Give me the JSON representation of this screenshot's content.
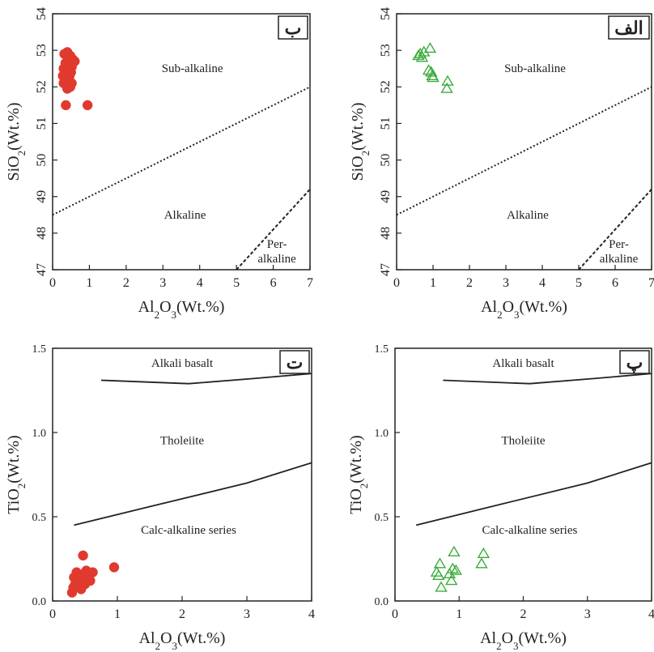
{
  "chart_data": [
    {
      "id": "top-left",
      "type": "scatter",
      "panel_label": "ب",
      "xlabel": {
        "base": "Al",
        "sub1": "2",
        "mid": "O",
        "sub2": "3",
        "tail": "(Wt.%)"
      },
      "ylabel": {
        "base": "SiO",
        "sub1": "2",
        "tail": "(Wt.%)"
      },
      "xlim": [
        0,
        7
      ],
      "ylim": [
        47,
        54
      ],
      "xticks": [
        0,
        1,
        2,
        3,
        4,
        5,
        6,
        7
      ],
      "yticks": [
        47,
        48,
        49,
        50,
        51,
        52,
        53,
        54
      ],
      "marker": "filled-circle",
      "marker_color": "#e03a2f",
      "points": [
        [
          0.32,
          52.9
        ],
        [
          0.4,
          52.95
        ],
        [
          0.48,
          52.85
        ],
        [
          0.55,
          52.75
        ],
        [
          0.6,
          52.7
        ],
        [
          0.35,
          52.65
        ],
        [
          0.45,
          52.6
        ],
        [
          0.52,
          52.55
        ],
        [
          0.3,
          52.5
        ],
        [
          0.42,
          52.45
        ],
        [
          0.5,
          52.4
        ],
        [
          0.38,
          52.35
        ],
        [
          0.28,
          52.3
        ],
        [
          0.46,
          52.3
        ],
        [
          0.34,
          52.2
        ],
        [
          0.44,
          52.15
        ],
        [
          0.3,
          52.1
        ],
        [
          0.52,
          52.1
        ],
        [
          0.38,
          52.05
        ],
        [
          0.48,
          52.0
        ],
        [
          0.4,
          51.95
        ],
        [
          0.36,
          51.5
        ],
        [
          0.95,
          51.5
        ]
      ],
      "boundaries": [
        {
          "style": "dotted",
          "points": [
            [
              0,
              48.5
            ],
            [
              7,
              52.0
            ]
          ]
        },
        {
          "style": "dashed",
          "points": [
            [
              5,
              47.0
            ],
            [
              7,
              49.2
            ]
          ]
        }
      ],
      "regions": [
        {
          "lines": [
            "Sub-alkaline"
          ],
          "at": [
            3.8,
            52.4
          ]
        },
        {
          "lines": [
            "Alkaline"
          ],
          "at": [
            3.6,
            48.4
          ]
        },
        {
          "lines": [
            "Per-",
            "alkaline"
          ],
          "at": [
            6.1,
            47.6
          ]
        }
      ]
    },
    {
      "id": "top-right",
      "type": "scatter",
      "panel_label": "الف",
      "xlabel": {
        "base": "Al",
        "sub1": "2",
        "mid": "O",
        "sub2": "3",
        "tail": "(Wt.%)"
      },
      "ylabel": {
        "base": "SiO",
        "sub1": "2",
        "tail": "(Wt.%)"
      },
      "xlim": [
        0,
        7
      ],
      "ylim": [
        47,
        54
      ],
      "xticks": [
        0,
        1,
        2,
        3,
        4,
        5,
        6,
        7
      ],
      "yticks": [
        47,
        48,
        49,
        50,
        51,
        52,
        53,
        54
      ],
      "marker": "open-triangle",
      "marker_color": "#3cac3c",
      "points": [
        [
          0.6,
          52.85
        ],
        [
          0.65,
          52.9
        ],
        [
          0.7,
          52.8
        ],
        [
          0.75,
          52.95
        ],
        [
          0.92,
          53.05
        ],
        [
          0.88,
          52.45
        ],
        [
          0.95,
          52.4
        ],
        [
          0.98,
          52.3
        ],
        [
          1.0,
          52.25
        ],
        [
          1.4,
          52.15
        ],
        [
          1.38,
          51.95
        ]
      ],
      "boundaries": [
        {
          "style": "dotted",
          "points": [
            [
              0,
              48.5
            ],
            [
              7,
              52.0
            ]
          ]
        },
        {
          "style": "dashed",
          "points": [
            [
              5,
              47.0
            ],
            [
              7,
              49.2
            ]
          ]
        }
      ],
      "regions": [
        {
          "lines": [
            "Sub-alkaline"
          ],
          "at": [
            3.8,
            52.4
          ]
        },
        {
          "lines": [
            "Alkaline"
          ],
          "at": [
            3.6,
            48.4
          ]
        },
        {
          "lines": [
            "Per-",
            "alkaline"
          ],
          "at": [
            6.1,
            47.6
          ]
        }
      ]
    },
    {
      "id": "bottom-left",
      "type": "scatter",
      "panel_label": "ت",
      "xlabel": {
        "base": "Al",
        "sub1": "2",
        "mid": "O",
        "sub2": "3",
        "tail": "(Wt.%)"
      },
      "ylabel": {
        "base": "TiO",
        "sub1": "2",
        "tail": "(Wt.%)"
      },
      "xlim": [
        0,
        4
      ],
      "ylim": [
        0,
        1.5
      ],
      "xticks": [
        0,
        1,
        2,
        3,
        4
      ],
      "yticks": [
        0.0,
        0.5,
        1.0,
        1.5
      ],
      "ytick_labels": [
        "0.0",
        "0.5",
        "1.0",
        "1.5"
      ],
      "marker": "filled-circle",
      "marker_color": "#e03a2f",
      "points": [
        [
          0.3,
          0.05
        ],
        [
          0.32,
          0.08
        ],
        [
          0.35,
          0.1
        ],
        [
          0.38,
          0.12
        ],
        [
          0.4,
          0.09
        ],
        [
          0.42,
          0.14
        ],
        [
          0.45,
          0.11
        ],
        [
          0.48,
          0.16
        ],
        [
          0.5,
          0.13
        ],
        [
          0.52,
          0.18
        ],
        [
          0.55,
          0.15
        ],
        [
          0.58,
          0.12
        ],
        [
          0.62,
          0.17
        ],
        [
          0.33,
          0.14
        ],
        [
          0.37,
          0.17
        ],
        [
          0.44,
          0.07
        ],
        [
          0.5,
          0.1
        ],
        [
          0.47,
          0.27
        ],
        [
          0.95,
          0.2
        ]
      ],
      "boundaries": [
        {
          "style": "solid",
          "points": [
            [
              0.75,
              1.31
            ],
            [
              2.1,
              1.29
            ],
            [
              3.1,
              1.32
            ],
            [
              4.0,
              1.35
            ]
          ]
        },
        {
          "style": "solid",
          "points": [
            [
              0.33,
              0.45
            ],
            [
              1.5,
              0.56
            ],
            [
              3.0,
              0.7
            ],
            [
              4.0,
              0.82
            ]
          ]
        }
      ],
      "regions": [
        {
          "lines": [
            "Alkali basalt"
          ],
          "at": [
            2.0,
            1.39
          ]
        },
        {
          "lines": [
            "Tholeiite"
          ],
          "at": [
            2.0,
            0.93
          ]
        },
        {
          "lines": [
            "Calc-alkaline series"
          ],
          "at": [
            2.1,
            0.4
          ]
        }
      ]
    },
    {
      "id": "bottom-right",
      "type": "scatter",
      "panel_label": "پ",
      "xlabel": {
        "base": "Al",
        "sub1": "2",
        "mid": "O",
        "sub2": "3",
        "tail": "(Wt.%)"
      },
      "ylabel": {
        "base": "TiO",
        "sub1": "2",
        "tail": "(Wt.%)"
      },
      "xlim": [
        0,
        4
      ],
      "ylim": [
        0,
        1.5
      ],
      "xticks": [
        0,
        1,
        2,
        3,
        4
      ],
      "yticks": [
        0.0,
        0.5,
        1.0,
        1.5
      ],
      "ytick_labels": [
        "0.0",
        "0.5",
        "1.0",
        "1.5"
      ],
      "marker": "open-triangle",
      "marker_color": "#3cac3c",
      "points": [
        [
          0.65,
          0.17
        ],
        [
          0.7,
          0.22
        ],
        [
          0.68,
          0.15
        ],
        [
          0.72,
          0.08
        ],
        [
          0.85,
          0.16
        ],
        [
          0.88,
          0.12
        ],
        [
          0.9,
          0.19
        ],
        [
          0.92,
          0.29
        ],
        [
          0.95,
          0.18
        ],
        [
          1.35,
          0.22
        ],
        [
          1.38,
          0.28
        ]
      ],
      "boundaries": [
        {
          "style": "solid",
          "points": [
            [
              0.75,
              1.31
            ],
            [
              2.1,
              1.29
            ],
            [
              3.1,
              1.32
            ],
            [
              4.0,
              1.35
            ]
          ]
        },
        {
          "style": "solid",
          "points": [
            [
              0.33,
              0.45
            ],
            [
              1.5,
              0.56
            ],
            [
              3.0,
              0.7
            ],
            [
              4.0,
              0.82
            ]
          ]
        }
      ],
      "regions": [
        {
          "lines": [
            "Alkali basalt"
          ],
          "at": [
            2.0,
            1.39
          ]
        },
        {
          "lines": [
            "Tholeiite"
          ],
          "at": [
            2.0,
            0.93
          ]
        },
        {
          "lines": [
            "Calc-alkaline series"
          ],
          "at": [
            2.1,
            0.4
          ]
        }
      ]
    }
  ]
}
